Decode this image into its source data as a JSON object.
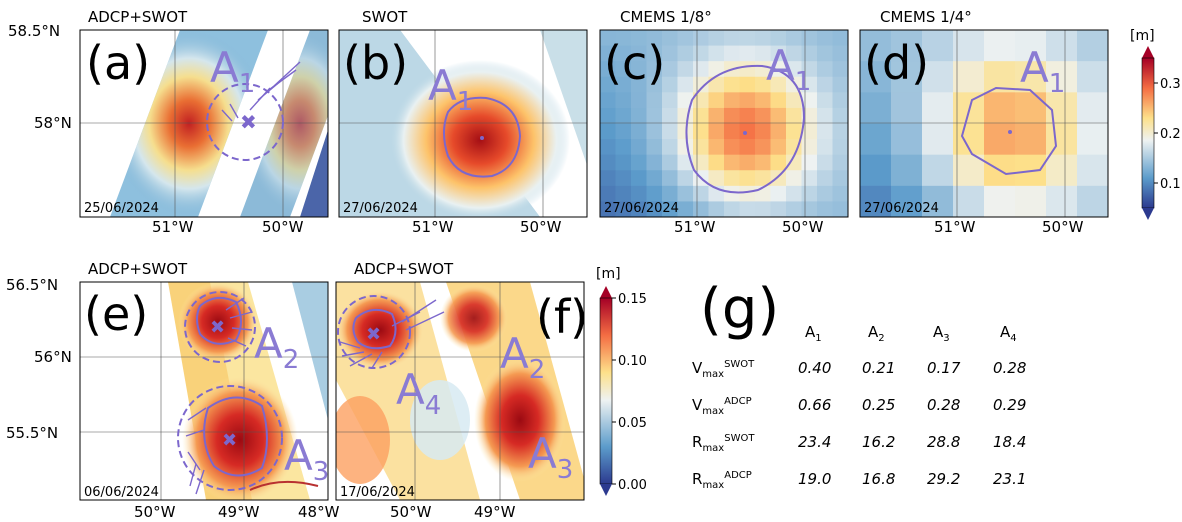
{
  "colors": {
    "contour": "#7c67cc",
    "purple_text": "#8a7bd3",
    "land_red": "#b83030"
  },
  "panels": [
    {
      "id": "a",
      "label": "(a)",
      "title": "ADCP+SWOT",
      "date": "25/06/2024",
      "eddy": "A",
      "eddy_sub": "1",
      "lat_ticks": [
        "58.5°N",
        "58°N"
      ],
      "lon_ticks": [
        "51°W",
        "50°W"
      ]
    },
    {
      "id": "b",
      "label": "(b)",
      "title": "SWOT",
      "date": "27/06/2024",
      "eddy": "A",
      "eddy_sub": "1",
      "lat_ticks": [],
      "lon_ticks": [
        "51°W",
        "50°W"
      ]
    },
    {
      "id": "c",
      "label": "(c)",
      "title": "CMEMS 1/8°",
      "date": "27/06/2024",
      "eddy": "A",
      "eddy_sub": "1",
      "lat_ticks": [],
      "lon_ticks": [
        "51°W",
        "50°W"
      ]
    },
    {
      "id": "d",
      "label": "(d)",
      "title": "CMEMS 1/4°",
      "date": "27/06/2024",
      "eddy": "A",
      "eddy_sub": "1",
      "lat_ticks": [],
      "lon_ticks": [
        "51°W",
        "50°W"
      ]
    },
    {
      "id": "e",
      "label": "(e)",
      "title": "ADCP+SWOT",
      "date": "06/06/2024",
      "eddies": [
        {
          "n": "A",
          "s": "2"
        },
        {
          "n": "A",
          "s": "3"
        }
      ],
      "lat_ticks": [
        "56.5°N",
        "56°N",
        "55.5°N"
      ],
      "lon_ticks": [
        "50°W",
        "49°W",
        "48°W"
      ]
    },
    {
      "id": "f",
      "label": "(f)",
      "title": "ADCP+SWOT",
      "date": "17/06/2024",
      "eddies": [
        {
          "n": "A",
          "s": "2"
        },
        {
          "n": "A",
          "s": "4"
        },
        {
          "n": "A",
          "s": "3"
        }
      ],
      "lat_ticks": [],
      "lon_ticks": [
        "50°W",
        "49°W",
        "48°W"
      ]
    }
  ],
  "colorbar_top": {
    "unit": "[m]",
    "ticks": [
      "0.3",
      "0.2",
      "0.1"
    ],
    "range": [
      0.05,
      0.35
    ]
  },
  "colorbar_bottom": {
    "unit": "[m]",
    "ticks": [
      "0.15",
      "0.10",
      "0.05",
      "0.00"
    ],
    "range": [
      0,
      0.15
    ]
  },
  "table": {
    "label": "(g)",
    "columns": [
      {
        "n": "A",
        "s": "1"
      },
      {
        "n": "A",
        "s": "2"
      },
      {
        "n": "A",
        "s": "3"
      },
      {
        "n": "A",
        "s": "4"
      }
    ],
    "rows": [
      {
        "n": "V",
        "sub": "max",
        "sup": "SWOT",
        "values": [
          "0.40",
          "0.21",
          "0.17",
          "0.28"
        ]
      },
      {
        "n": "V",
        "sub": "max",
        "sup": "ADCP",
        "values": [
          "0.66",
          "0.25",
          "0.28",
          "0.29"
        ]
      },
      {
        "n": "R",
        "sub": "max",
        "sup": "SWOT",
        "values": [
          "23.4",
          "16.2",
          "28.8",
          "18.4"
        ]
      },
      {
        "n": "R",
        "sub": "max",
        "sup": "ADCP",
        "values": [
          "19.0",
          "16.8",
          "29.2",
          "23.1"
        ]
      }
    ]
  },
  "chart_data": {
    "type": "table",
    "columns": [
      "A1",
      "A2",
      "A3",
      "A4"
    ],
    "rows": [
      "Vmax SWOT",
      "Vmax ADCP",
      "Rmax SWOT",
      "Rmax ADCP"
    ],
    "values": [
      [
        0.4,
        0.21,
        0.17,
        0.28
      ],
      [
        0.66,
        0.25,
        0.28,
        0.29
      ],
      [
        23.4,
        16.2,
        28.8,
        18.4
      ],
      [
        19.0,
        16.8,
        29.2,
        23.1
      ]
    ]
  }
}
